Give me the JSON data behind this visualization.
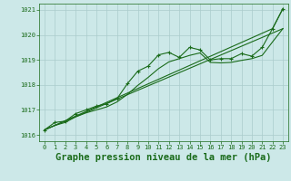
{
  "background_color": "#cce8e8",
  "grid_color": "#aacccc",
  "line_color": "#1a6b1a",
  "marker_color": "#1a6b1a",
  "title": "Graphe pression niveau de la mer (hPa)",
  "title_fontsize": 7.5,
  "ylim": [
    1015.75,
    1021.25
  ],
  "xlim": [
    -0.5,
    23.5
  ],
  "yticks": [
    1016,
    1017,
    1018,
    1019,
    1020,
    1021
  ],
  "xticks": [
    0,
    1,
    2,
    3,
    4,
    5,
    6,
    7,
    8,
    9,
    10,
    11,
    12,
    13,
    14,
    15,
    16,
    17,
    18,
    19,
    20,
    21,
    22,
    23
  ],
  "series": [
    {
      "x": [
        0,
        1,
        2,
        3,
        4,
        5,
        6,
        7,
        8,
        9,
        10,
        11,
        12,
        13,
        14,
        15,
        16,
        17,
        18,
        19,
        20,
        21,
        22,
        23
      ],
      "y": [
        1016.2,
        1016.5,
        1016.55,
        1016.85,
        1017.0,
        1017.15,
        1017.25,
        1017.45,
        1018.05,
        1018.55,
        1018.75,
        1019.2,
        1019.3,
        1019.1,
        1019.5,
        1019.4,
        1019.0,
        1019.05,
        1019.05,
        1019.25,
        1019.15,
        1019.5,
        1020.25,
        1021.05
      ],
      "marker": "+",
      "markersize": 3.5,
      "linewidth": 0.8
    },
    {
      "x": [
        0,
        1,
        2,
        3,
        4,
        5,
        6,
        7,
        8,
        9,
        10,
        11,
        12,
        13,
        14,
        15,
        16,
        17,
        18,
        19,
        20,
        21,
        22,
        23
      ],
      "y": [
        1016.2,
        1016.38,
        1016.5,
        1016.72,
        1016.88,
        1017.0,
        1017.12,
        1017.32,
        1017.62,
        1017.98,
        1018.3,
        1018.65,
        1018.92,
        1019.05,
        1019.18,
        1019.28,
        1018.9,
        1018.88,
        1018.9,
        1018.98,
        1019.05,
        1019.18,
        1019.72,
        1020.25
      ],
      "marker": null,
      "markersize": 0,
      "linewidth": 0.8
    },
    {
      "x": [
        0,
        22,
        23
      ],
      "y": [
        1016.2,
        1020.25,
        1021.05
      ],
      "marker": null,
      "markersize": 0,
      "linewidth": 0.8
    },
    {
      "x": [
        0,
        23
      ],
      "y": [
        1016.2,
        1020.25
      ],
      "marker": null,
      "markersize": 0,
      "linewidth": 0.8
    }
  ]
}
